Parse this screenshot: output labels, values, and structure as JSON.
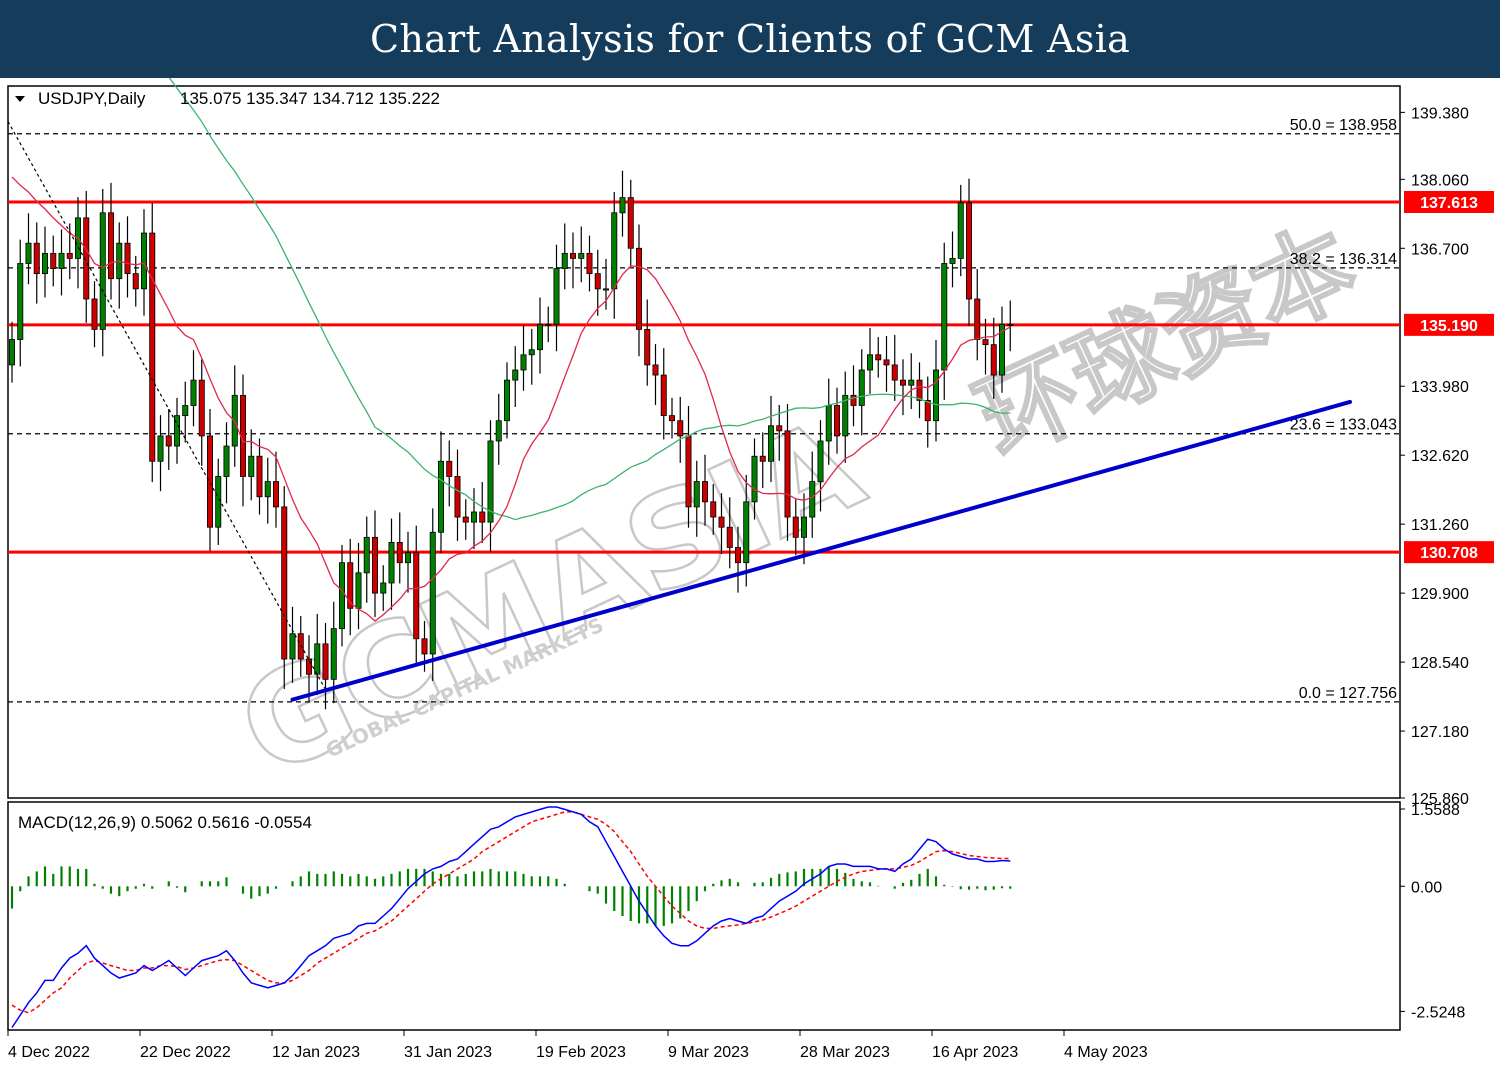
{
  "header": {
    "title": "Chart Analysis for Clients of GCM Asia"
  },
  "chart_data": {
    "type": "candlestick",
    "symbol_line": {
      "symbol": "USDJPY,Daily",
      "ohlc": "135.075 135.347 134.712 135.222"
    },
    "price_axis": {
      "ticks": [
        "139.380",
        "138.060",
        "136.700",
        "133.980",
        "132.620",
        "131.260",
        "129.900",
        "128.540",
        "127.180",
        "125.860"
      ],
      "ylim": [
        125.86,
        139.9
      ]
    },
    "date_axis": {
      "ticks": [
        "4 Dec 2022",
        "22 Dec 2022",
        "12 Jan 2023",
        "31 Jan 2023",
        "19 Feb 2023",
        "9 Mar 2023",
        "28 Mar 2023",
        "16 Apr 2023",
        "4 May 2023"
      ]
    },
    "levels": [
      {
        "label": "137.613",
        "value": 137.613,
        "color": "#ff0000"
      },
      {
        "label": "135.190",
        "value": 135.19,
        "color": "#ff0000"
      },
      {
        "label": "130.708",
        "value": 130.708,
        "color": "#ff0000"
      }
    ],
    "fibonacci": [
      {
        "label": "50.0 = 138.958",
        "value": 138.958
      },
      {
        "label": "38.2 = 136.314",
        "value": 136.314
      },
      {
        "label": "23.6 = 133.043",
        "value": 133.043
      },
      {
        "label": "0.0 = 127.756",
        "value": 127.756
      }
    ],
    "trendline": {
      "color": "#0000cc",
      "start": {
        "date": "2023-01-13",
        "value": 127.8
      },
      "end": {
        "date": "2023-05-12",
        "value": 133.67
      }
    },
    "colors": {
      "up": "#008000",
      "down": "#cc0000",
      "ma_fast": "#e0284a",
      "ma_slow": "#3cb371",
      "macd": "#0000ff",
      "signal": "#ff0000",
      "histogram": "#008000"
    },
    "closes": [
      134.9,
      136.4,
      136.8,
      136.2,
      136.6,
      136.3,
      136.6,
      136.5,
      137.3,
      135.7,
      135.1,
      137.4,
      136.1,
      136.8,
      136.2,
      135.9,
      137.0,
      132.5,
      133.0,
      132.8,
      133.4,
      133.6,
      134.1,
      133.0,
      131.2,
      132.2,
      132.8,
      133.8,
      132.2,
      132.6,
      131.8,
      132.1,
      131.6,
      128.6,
      129.1,
      128.6,
      128.3,
      128.9,
      128.2,
      129.2,
      130.5,
      129.6,
      130.3,
      131.0,
      129.9,
      130.1,
      130.9,
      130.5,
      130.7,
      129.0,
      128.7,
      131.1,
      132.5,
      132.2,
      131.4,
      131.3,
      131.5,
      131.3,
      132.9,
      133.3,
      134.1,
      134.3,
      134.6,
      134.7,
      135.2,
      135.2,
      136.3,
      136.6,
      136.5,
      136.6,
      136.2,
      135.9,
      135.9,
      137.4,
      137.7,
      136.7,
      135.1,
      134.4,
      134.2,
      133.4,
      133.3,
      133.0,
      131.6,
      132.1,
      131.7,
      131.4,
      131.2,
      130.8,
      130.5,
      131.7,
      132.6,
      132.5,
      133.2,
      133.1,
      131.4,
      131.0,
      131.4,
      132.1,
      132.9,
      133.6,
      133.0,
      133.8,
      133.6,
      134.3,
      134.6,
      134.5,
      134.4,
      134.1,
      134.0,
      134.1,
      133.7,
      133.3,
      134.3,
      136.4,
      136.5,
      137.6,
      135.7,
      134.9,
      134.8,
      134.2,
      135.2,
      135.2
    ],
    "macd_indicator": {
      "label": "MACD(12,26,9) 0.5062 0.5616 -0.0554",
      "ticks": [
        "1.5588",
        "0.00",
        "-2.5248"
      ],
      "ylim": [
        -2.9,
        1.7
      ],
      "values": [
        -2.85,
        -2.6,
        -2.35,
        -2.15,
        -1.9,
        -1.9,
        -1.65,
        -1.45,
        -1.35,
        -1.2,
        -1.45,
        -1.6,
        -1.75,
        -1.85,
        -1.8,
        -1.75,
        -1.6,
        -1.7,
        -1.6,
        -1.5,
        -1.65,
        -1.8,
        -1.65,
        -1.5,
        -1.45,
        -1.4,
        -1.3,
        -1.5,
        -1.75,
        -1.95,
        -2.0,
        -2.05,
        -2.0,
        -1.95,
        -1.8,
        -1.6,
        -1.4,
        -1.3,
        -1.2,
        -1.05,
        -1.0,
        -0.95,
        -0.8,
        -0.75,
        -0.75,
        -0.6,
        -0.45,
        -0.25,
        -0.05,
        0.1,
        0.25,
        0.35,
        0.4,
        0.5,
        0.55,
        0.7,
        0.85,
        1.0,
        1.15,
        1.2,
        1.3,
        1.4,
        1.45,
        1.5,
        1.55,
        1.6,
        1.6,
        1.55,
        1.5,
        1.45,
        1.3,
        1.2,
        0.9,
        0.6,
        0.3,
        0.0,
        -0.3,
        -0.55,
        -0.8,
        -1.0,
        -1.15,
        -1.2,
        -1.2,
        -1.1,
        -0.95,
        -0.8,
        -0.7,
        -0.65,
        -0.7,
        -0.75,
        -0.65,
        -0.6,
        -0.45,
        -0.3,
        -0.2,
        -0.1,
        0.05,
        0.15,
        0.25,
        0.4,
        0.45,
        0.45,
        0.4,
        0.4,
        0.4,
        0.35,
        0.35,
        0.3,
        0.45,
        0.55,
        0.75,
        0.95,
        0.9,
        0.75,
        0.65,
        0.6,
        0.55,
        0.55,
        0.5,
        0.5,
        0.52,
        0.51
      ],
      "signal_values": [
        -2.4,
        -2.5,
        -2.55,
        -2.45,
        -2.3,
        -2.15,
        -2.05,
        -1.85,
        -1.7,
        -1.55,
        -1.5,
        -1.55,
        -1.6,
        -1.65,
        -1.7,
        -1.7,
        -1.65,
        -1.65,
        -1.6,
        -1.6,
        -1.62,
        -1.68,
        -1.65,
        -1.6,
        -1.55,
        -1.5,
        -1.48,
        -1.5,
        -1.6,
        -1.7,
        -1.8,
        -1.9,
        -1.95,
        -1.95,
        -1.9,
        -1.8,
        -1.7,
        -1.55,
        -1.45,
        -1.35,
        -1.25,
        -1.15,
        -1.05,
        -0.95,
        -0.9,
        -0.8,
        -0.7,
        -0.55,
        -0.4,
        -0.25,
        -0.1,
        0.05,
        0.15,
        0.25,
        0.35,
        0.45,
        0.55,
        0.7,
        0.8,
        0.9,
        1.0,
        1.1,
        1.2,
        1.3,
        1.35,
        1.4,
        1.45,
        1.5,
        1.5,
        1.45,
        1.4,
        1.35,
        1.25,
        1.1,
        0.9,
        0.7,
        0.45,
        0.2,
        0.0,
        -0.2,
        -0.4,
        -0.55,
        -0.7,
        -0.8,
        -0.85,
        -0.85,
        -0.82,
        -0.8,
        -0.78,
        -0.75,
        -0.72,
        -0.68,
        -0.62,
        -0.55,
        -0.48,
        -0.4,
        -0.3,
        -0.2,
        -0.1,
        0.0,
        0.1,
        0.18,
        0.25,
        0.3,
        0.32,
        0.34,
        0.35,
        0.35,
        0.38,
        0.42,
        0.5,
        0.6,
        0.7,
        0.72,
        0.7,
        0.66,
        0.62,
        0.6,
        0.58,
        0.57,
        0.56,
        0.56
      ],
      "histogram": [
        -0.45,
        -0.1,
        0.2,
        0.3,
        0.4,
        0.25,
        0.4,
        0.4,
        0.35,
        0.35,
        0.05,
        -0.05,
        -0.15,
        -0.2,
        -0.1,
        -0.05,
        0.05,
        -0.05,
        0.0,
        0.1,
        -0.03,
        -0.12,
        0.0,
        0.1,
        0.1,
        0.1,
        0.18,
        0.0,
        -0.15,
        -0.25,
        -0.2,
        -0.15,
        -0.05,
        0.0,
        0.1,
        0.2,
        0.3,
        0.25,
        0.25,
        0.3,
        0.25,
        0.2,
        0.25,
        0.2,
        0.15,
        0.2,
        0.25,
        0.3,
        0.35,
        0.35,
        0.35,
        0.3,
        0.25,
        0.25,
        0.2,
        0.25,
        0.3,
        0.3,
        0.35,
        0.3,
        0.3,
        0.3,
        0.25,
        0.2,
        0.2,
        0.2,
        0.15,
        0.05,
        0.0,
        0.0,
        -0.1,
        -0.15,
        -0.35,
        -0.5,
        -0.6,
        -0.7,
        -0.75,
        -0.75,
        -0.8,
        -0.8,
        -0.75,
        -0.65,
        -0.5,
        -0.3,
        -0.1,
        0.05,
        0.12,
        0.15,
        0.08,
        0.0,
        0.07,
        0.08,
        0.17,
        0.25,
        0.28,
        0.3,
        0.35,
        0.35,
        0.35,
        0.4,
        0.35,
        0.27,
        0.15,
        0.1,
        0.08,
        0.01,
        0.0,
        -0.05,
        0.07,
        0.13,
        0.25,
        0.35,
        0.2,
        0.03,
        -0.01,
        -0.06,
        -0.07,
        -0.05,
        -0.08,
        -0.07,
        -0.04,
        -0.05
      ]
    }
  },
  "watermark": {
    "brand": "GCMASIA",
    "cn": "环球资本",
    "sub": "GLOBAL CAPITAL MARKETS"
  }
}
